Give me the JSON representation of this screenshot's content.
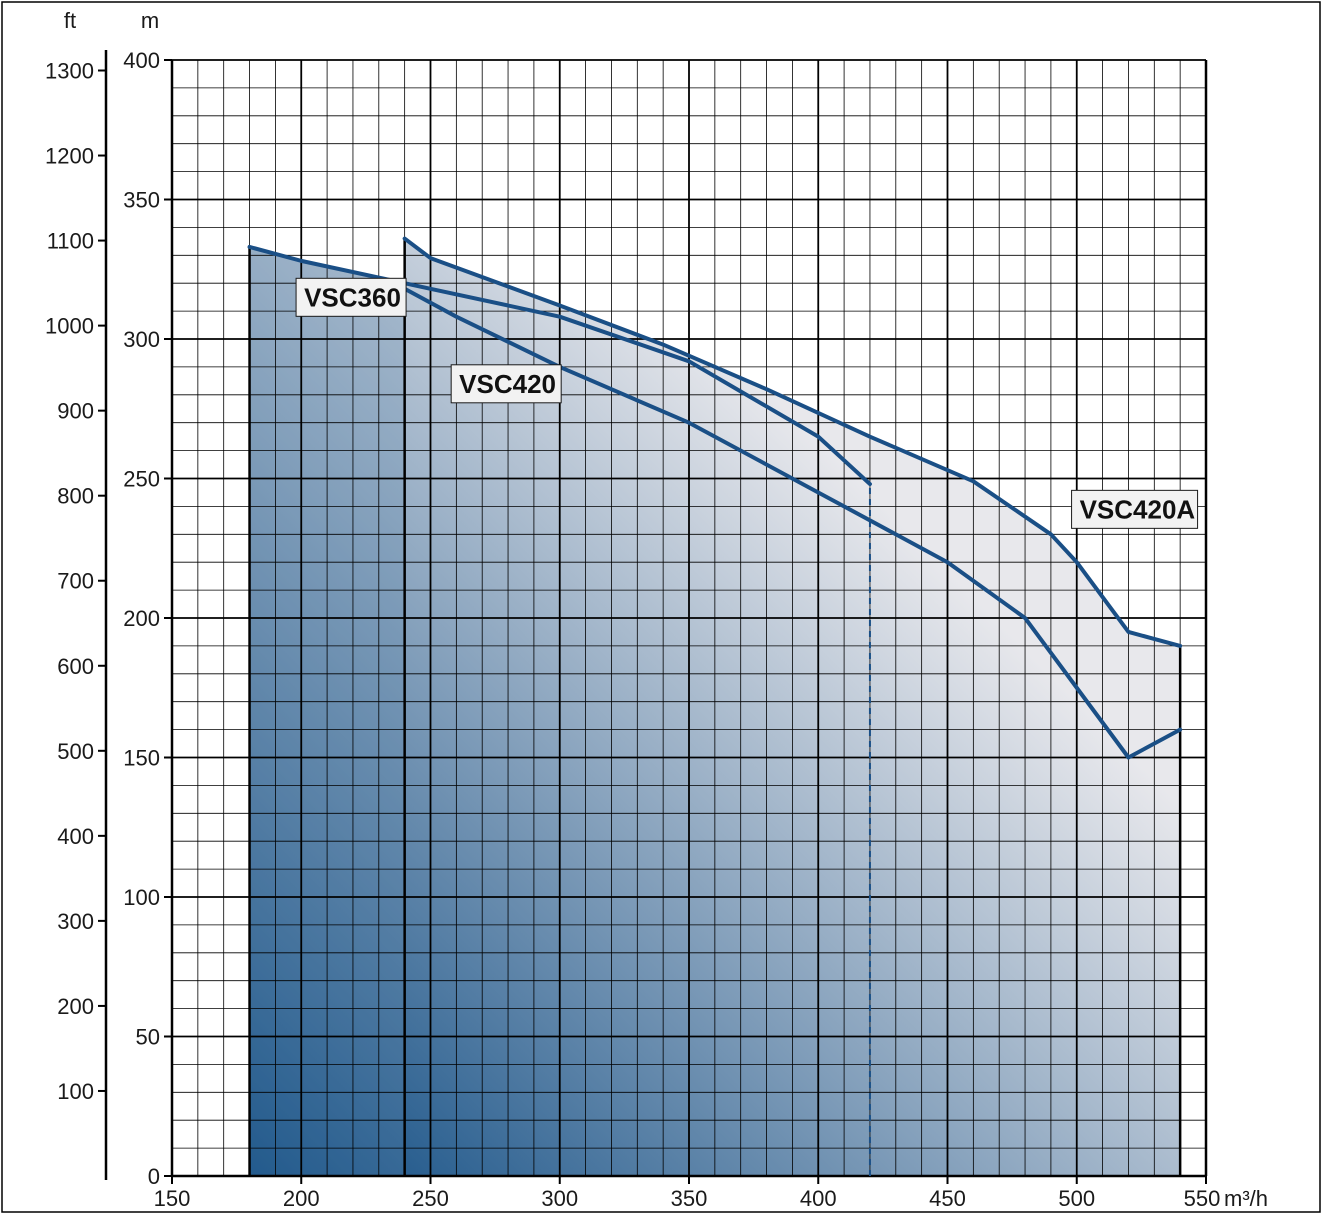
{
  "chart_data": {
    "type": "area",
    "xlabel": "",
    "x_unit": "m³/h",
    "x_ticks": [
      150,
      200,
      250,
      300,
      350,
      400,
      450,
      500,
      550
    ],
    "xlim": [
      150,
      550
    ],
    "y_unit_left": "m",
    "y_unit_far_left": "ft",
    "ylim": [
      0,
      400
    ],
    "y_ticks_m": [
      0,
      50,
      100,
      150,
      200,
      250,
      300,
      350,
      400
    ],
    "y_ticks_ft": [
      100,
      200,
      300,
      400,
      500,
      600,
      700,
      800,
      900,
      1000,
      1100,
      1200,
      1300
    ],
    "grid": true,
    "series": [
      {
        "name": "VSC360",
        "x": [
          180,
          200,
          250,
          300,
          350,
          400,
          420
        ],
        "y": [
          333,
          328,
          318,
          308,
          292,
          265,
          248
        ]
      },
      {
        "name": "VSC420",
        "x": [
          240,
          260,
          300,
          350,
          400,
          450,
          480,
          500,
          520,
          540
        ],
        "y": [
          318,
          308,
          290,
          270,
          245,
          220,
          200,
          175,
          150,
          160
        ]
      },
      {
        "name": "VSC420A",
        "x": [
          240,
          250,
          300,
          340,
          380,
          420,
          460,
          490,
          500,
          520,
          540
        ],
        "y": [
          336,
          329,
          312,
          298,
          282,
          265,
          249,
          230,
          220,
          195,
          190
        ]
      }
    ],
    "vertical_markers": [
      {
        "x": 180,
        "style": "solid"
      },
      {
        "x": 240,
        "style": "solid"
      },
      {
        "x": 420,
        "style": "dashed"
      },
      {
        "x": 540,
        "style": "solid"
      }
    ],
    "colors": {
      "curve": "#1a4f86",
      "grid": "#000000",
      "gradient_dark": "#0a4880",
      "gradient_light": "#e8e8ec"
    }
  }
}
